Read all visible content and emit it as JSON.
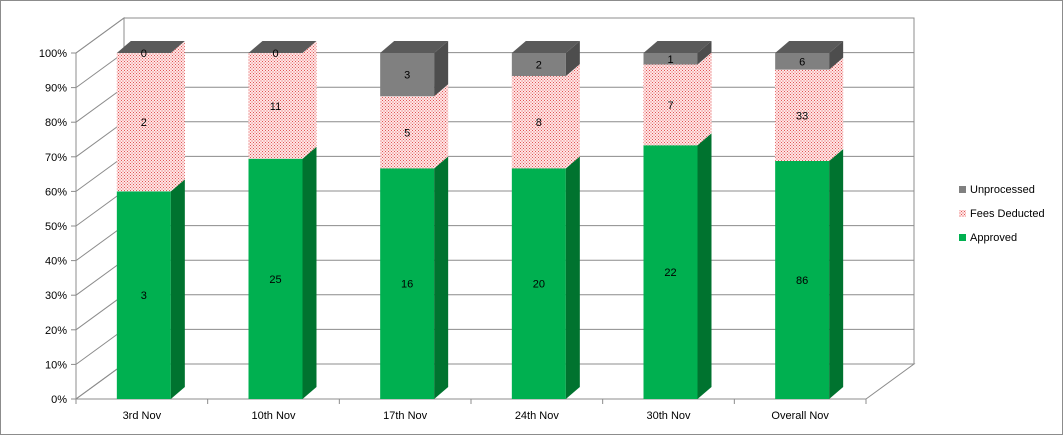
{
  "chart_data": {
    "type": "bar",
    "stacked": "percent",
    "three_d": true,
    "categories": [
      "3rd Nov",
      "10th Nov",
      "17th Nov",
      "24th Nov",
      "30th Nov",
      "Overall Nov"
    ],
    "series": [
      {
        "name": "Approved",
        "values": [
          3,
          25,
          16,
          20,
          22,
          86
        ],
        "color": "#00b050",
        "side_color": "#00732f",
        "top_color": "#33c06f"
      },
      {
        "name": "Fees Deducted",
        "values": [
          2,
          11,
          5,
          8,
          7,
          33
        ],
        "color": "#ffd9d9",
        "dot_color": "#e06060",
        "side_color": "#ffcccc",
        "top_color": "#ffe0e0"
      },
      {
        "name": "Unprocessed",
        "values": [
          0,
          0,
          3,
          2,
          1,
          6
        ],
        "color": "#808080",
        "side_color": "#4d4d4d",
        "top_color": "#5a5a5a"
      }
    ],
    "y_ticks": [
      "0%",
      "10%",
      "20%",
      "30%",
      "40%",
      "50%",
      "60%",
      "70%",
      "80%",
      "90%",
      "100%"
    ],
    "ylim": [
      0,
      100
    ],
    "grid": true,
    "legend_position": "right",
    "title": "",
    "xlabel": "",
    "ylabel": ""
  }
}
